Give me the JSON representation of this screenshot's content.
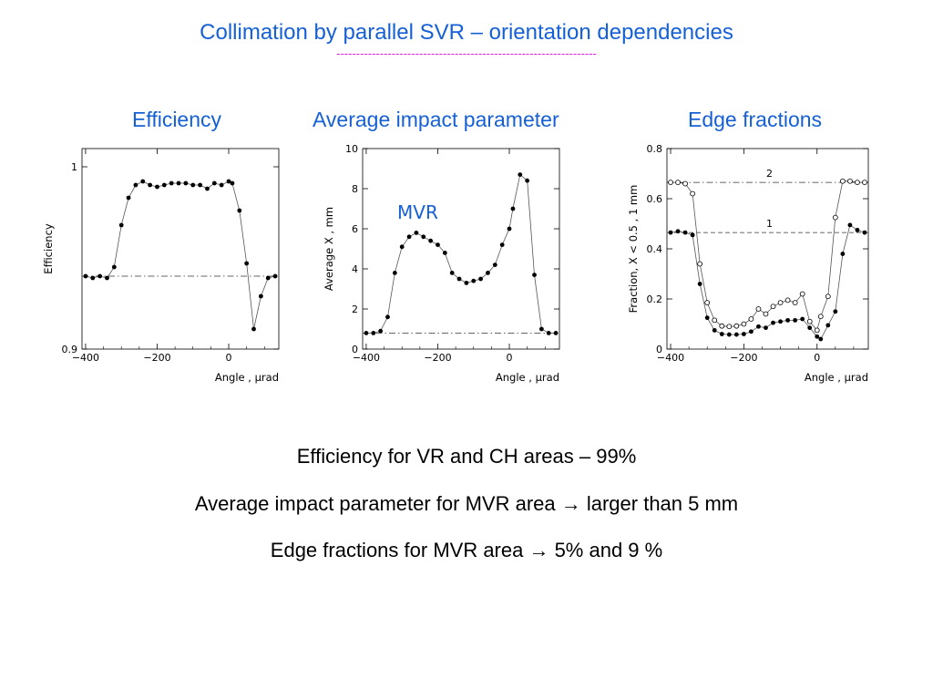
{
  "slide": {
    "title": "Collimation by parallel SVR – orientation dependencies",
    "underline": "------------------------------------------------------------------",
    "headings": {
      "efficiency": "Efficiency",
      "impact": "Average impact parameter",
      "edge": "Edge fractions"
    },
    "notes": [
      "Efficiency for VR and CH areas – 99%",
      "Average impact parameter for MVR area → larger than 5 mm",
      "Edge fractions for MVR area → 5% and 9 %"
    ],
    "colors": {
      "title": "#1660d6",
      "underline": "#e81fe0"
    }
  },
  "chart_data": [
    {
      "type": "line",
      "ylabel": "Efficiency",
      "xlabel": "Angle , μrad",
      "xlim": [
        -410,
        140
      ],
      "ylim": [
        0.9,
        1.01
      ],
      "xticks": [
        "−400",
        "−200",
        "0"
      ],
      "xtick_values": [
        -400,
        -200,
        0
      ],
      "yticks": [
        "0.9",
        "1"
      ],
      "ytick_values": [
        0.9,
        1.0
      ],
      "reference_line": {
        "y": 0.94,
        "style": "dash-dot"
      },
      "series": [
        {
          "marker": "filled",
          "x": [
            -400,
            -380,
            -360,
            -340,
            -320,
            -300,
            -280,
            -260,
            -240,
            -220,
            -200,
            -180,
            -160,
            -140,
            -120,
            -100,
            -80,
            -60,
            -40,
            -20,
            0,
            10,
            30,
            50,
            70,
            90,
            110,
            130
          ],
          "y": [
            0.94,
            0.939,
            0.94,
            0.939,
            0.945,
            0.968,
            0.983,
            0.99,
            0.992,
            0.99,
            0.989,
            0.99,
            0.991,
            0.991,
            0.991,
            0.99,
            0.99,
            0.988,
            0.991,
            0.99,
            0.992,
            0.991,
            0.976,
            0.947,
            0.911,
            0.929,
            0.939,
            0.94
          ]
        }
      ]
    },
    {
      "type": "line",
      "ylabel": "Average X , mm",
      "xlabel": "Angle , μrad",
      "annotation": "MVR",
      "xlim": [
        -410,
        140
      ],
      "ylim": [
        0,
        10
      ],
      "xticks": [
        "−400",
        "−200",
        "0"
      ],
      "xtick_values": [
        -400,
        -200,
        0
      ],
      "yticks": [
        "0",
        "2",
        "4",
        "6",
        "8",
        "10"
      ],
      "ytick_values": [
        0,
        2,
        4,
        6,
        8,
        10
      ],
      "reference_line": {
        "y": 0.8,
        "style": "dash-dot"
      },
      "series": [
        {
          "marker": "filled",
          "x": [
            -400,
            -380,
            -360,
            -340,
            -320,
            -300,
            -280,
            -260,
            -240,
            -220,
            -200,
            -180,
            -160,
            -140,
            -120,
            -100,
            -80,
            -60,
            -40,
            -20,
            0,
            10,
            30,
            50,
            70,
            90,
            110,
            130
          ],
          "y": [
            0.8,
            0.8,
            0.9,
            1.6,
            3.8,
            5.1,
            5.6,
            5.8,
            5.6,
            5.4,
            5.2,
            4.8,
            3.8,
            3.5,
            3.3,
            3.4,
            3.5,
            3.8,
            4.2,
            5.2,
            6.0,
            7.0,
            8.7,
            8.4,
            3.7,
            1.0,
            0.8,
            0.8
          ]
        }
      ]
    },
    {
      "type": "line",
      "ylabel": "Fraction, X < 0.5 , 1 mm",
      "xlabel": "Angle , μrad",
      "xlim": [
        -410,
        140
      ],
      "ylim": [
        0,
        0.8
      ],
      "xticks": [
        "−400",
        "−200",
        "0"
      ],
      "xtick_values": [
        -400,
        -200,
        0
      ],
      "yticks": [
        "0",
        "0.2",
        "0.4",
        "0.6",
        "0.8"
      ],
      "ytick_values": [
        0,
        0.2,
        0.4,
        0.6,
        0.8
      ],
      "reference_lines": [
        {
          "y": 0.665,
          "style": "dash-dot",
          "label": "2"
        },
        {
          "y": 0.465,
          "style": "dashed",
          "label": "1"
        }
      ],
      "series": [
        {
          "marker": "filled",
          "x": [
            -400,
            -380,
            -360,
            -340,
            -320,
            -300,
            -280,
            -260,
            -240,
            -220,
            -200,
            -180,
            -160,
            -140,
            -120,
            -100,
            -80,
            -60,
            -40,
            -20,
            0,
            10,
            30,
            50,
            70,
            90,
            110,
            130
          ],
          "y": [
            0.465,
            0.47,
            0.465,
            0.455,
            0.26,
            0.125,
            0.075,
            0.06,
            0.058,
            0.058,
            0.06,
            0.07,
            0.09,
            0.085,
            0.105,
            0.11,
            0.115,
            0.115,
            0.12,
            0.085,
            0.05,
            0.04,
            0.095,
            0.15,
            0.38,
            0.495,
            0.475,
            0.465
          ]
        },
        {
          "marker": "open",
          "x": [
            -400,
            -380,
            -360,
            -340,
            -320,
            -300,
            -280,
            -260,
            -240,
            -220,
            -200,
            -180,
            -160,
            -140,
            -120,
            -100,
            -80,
            -60,
            -40,
            -20,
            0,
            10,
            30,
            50,
            70,
            90,
            110,
            130
          ],
          "y": [
            0.665,
            0.665,
            0.66,
            0.62,
            0.34,
            0.185,
            0.115,
            0.092,
            0.09,
            0.092,
            0.1,
            0.12,
            0.16,
            0.14,
            0.17,
            0.185,
            0.195,
            0.185,
            0.22,
            0.11,
            0.075,
            0.13,
            0.21,
            0.525,
            0.67,
            0.67,
            0.665,
            0.665
          ]
        }
      ]
    }
  ]
}
